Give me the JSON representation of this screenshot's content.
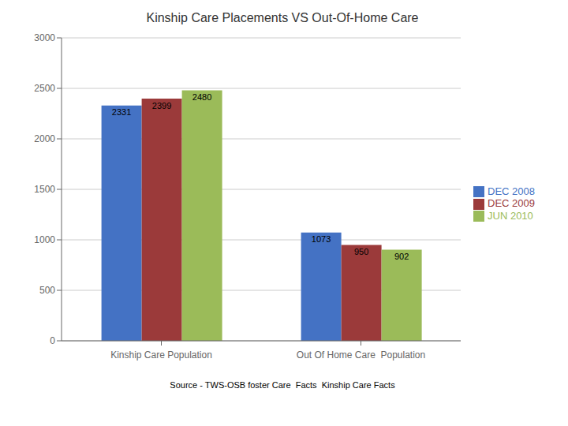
{
  "chart_data": {
    "type": "bar",
    "title": "Kinship Care Placements VS Out-Of-Home Care",
    "categories": [
      "Kinship Care Population",
      "Out Of Home Care  Population"
    ],
    "series": [
      {
        "name": "DEC 2008",
        "color": "#4472C4",
        "values": [
          2331,
          1073
        ]
      },
      {
        "name": "DEC 2009",
        "color": "#9B3A3A",
        "values": [
          2399,
          950
        ]
      },
      {
        "name": "JUN 2010",
        "color": "#9BBB59",
        "values": [
          2480,
          902
        ]
      }
    ],
    "ylim": [
      0,
      3000
    ],
    "yticks": [
      0,
      500,
      1000,
      1500,
      2000,
      2500,
      3000
    ],
    "grid": true,
    "legend": "right",
    "data_labels": true,
    "annotations": [
      "Source - TWS-OSB foster Care  Facts  Kinship Care Facts"
    ]
  }
}
